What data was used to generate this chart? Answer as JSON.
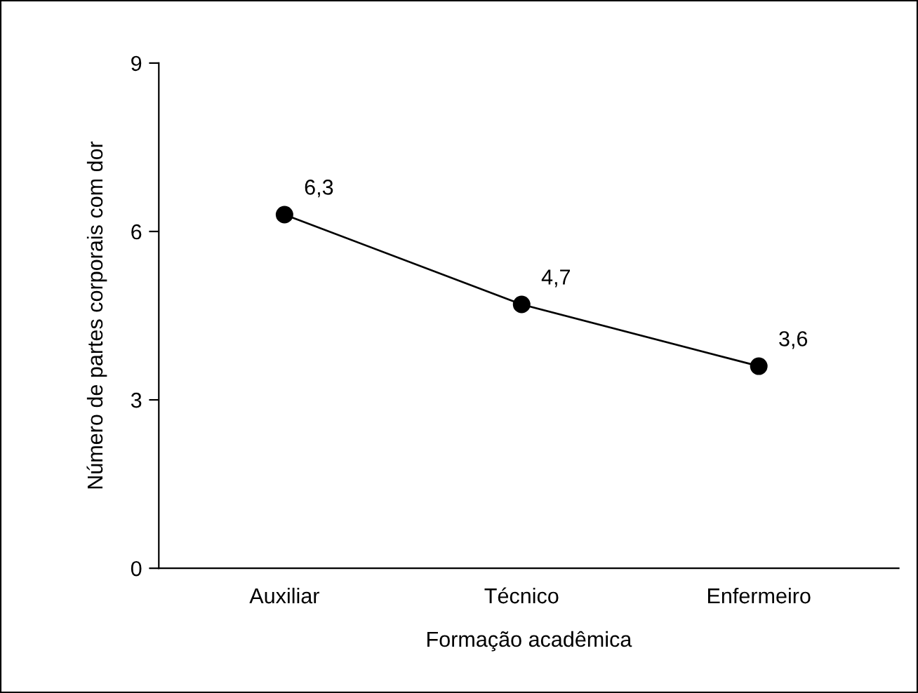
{
  "chart_data": {
    "type": "line",
    "xlabel": "Formação acadêmica",
    "ylabel": "Número de partes corporais com dor",
    "categories": [
      "Auxiliar",
      "Técnico",
      "Enfermeiro"
    ],
    "values": [
      6.3,
      4.7,
      3.6
    ],
    "value_labels": [
      "6,3",
      "4,7",
      "3,6"
    ],
    "color": "#000000",
    "marker": "circle",
    "line_style": "solid",
    "ylim": [
      0,
      9
    ],
    "yticks": [
      0,
      3,
      6,
      9
    ],
    "grid": false
  }
}
